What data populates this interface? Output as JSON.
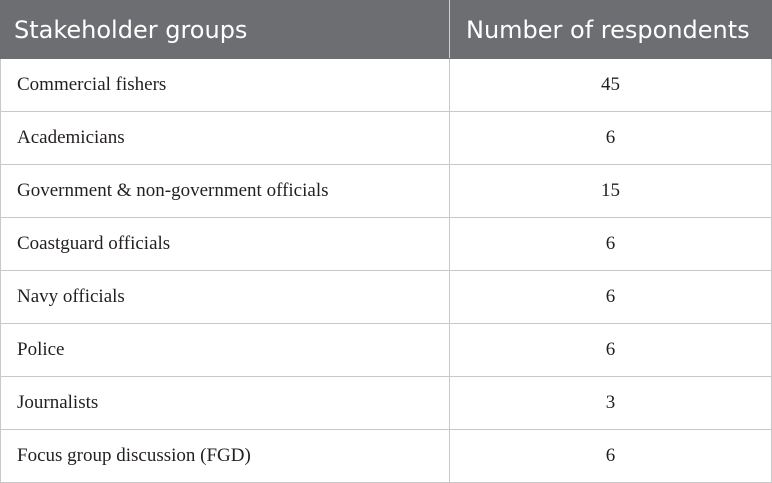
{
  "table": {
    "headers": [
      "Stakeholder groups",
      "Number of respondents"
    ],
    "rows": [
      {
        "group": "Commercial fishers",
        "count": "45"
      },
      {
        "group": "Academicians",
        "count": "6"
      },
      {
        "group": "Government & non-government officials",
        "count": "15"
      },
      {
        "group": "Coastguard officials",
        "count": "6"
      },
      {
        "group": "Navy officials",
        "count": "6"
      },
      {
        "group": "Police",
        "count": "6"
      },
      {
        "group": "Journalists",
        "count": "3"
      },
      {
        "group": "Focus group discussion (FGD)",
        "count": "6"
      }
    ]
  },
  "colors": {
    "header_background": "#6d6e71",
    "header_text": "#ffffff",
    "body_text": "#231f20",
    "grid_line": "#c8c8c8"
  }
}
